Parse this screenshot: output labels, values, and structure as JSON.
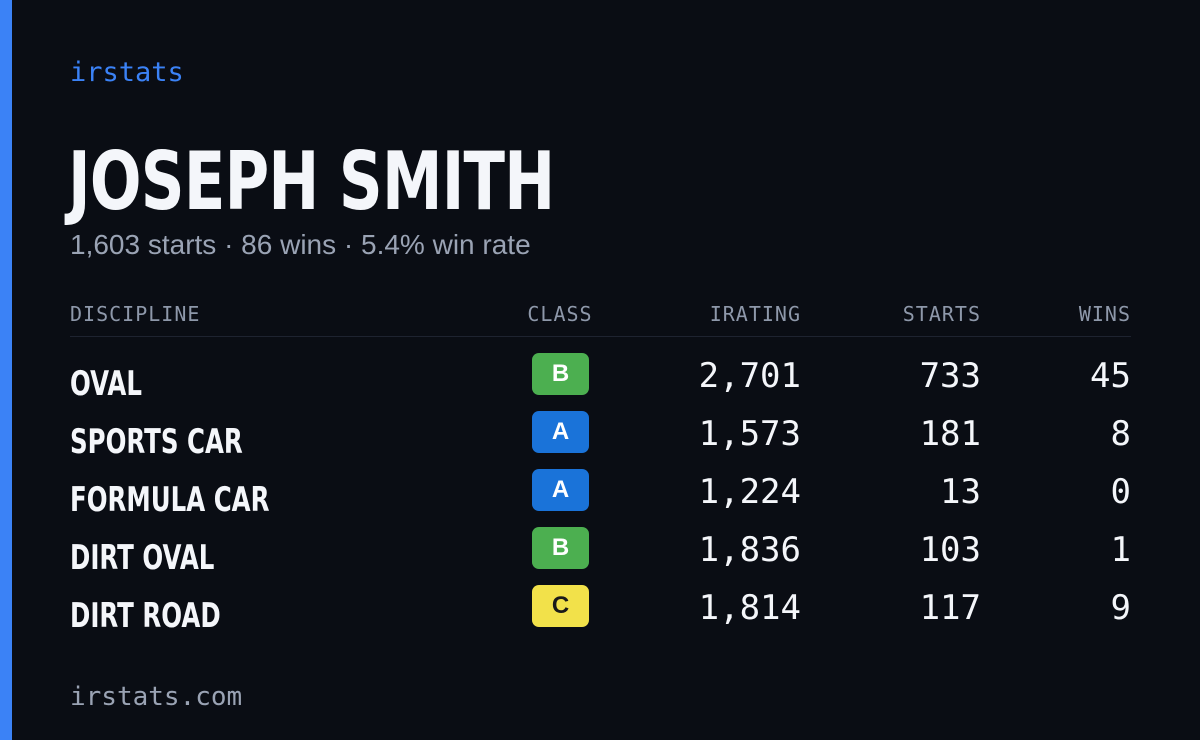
{
  "theme": {
    "accent": "#3b82f6",
    "class_colors": {
      "A": {
        "bg": "#1a73d9",
        "fg": "#ffffff"
      },
      "B": {
        "bg": "#4caf50",
        "fg": "#ffffff"
      },
      "C": {
        "bg": "#f2e14a",
        "fg": "#1a1a1a"
      }
    }
  },
  "brand": "irstats",
  "driver": {
    "name": "JOSEPH SMITH",
    "summary": "1,603 starts · 86 wins · 5.4% win rate"
  },
  "table": {
    "headers": {
      "discipline": "DISCIPLINE",
      "class": "CLASS",
      "irating": "IRATING",
      "starts": "STARTS",
      "wins": "WINS"
    },
    "rows": [
      {
        "discipline": "OVAL",
        "class": "B",
        "irating": "2,701",
        "starts": "733",
        "wins": "45"
      },
      {
        "discipline": "SPORTS CAR",
        "class": "A",
        "irating": "1,573",
        "starts": "181",
        "wins": "8"
      },
      {
        "discipline": "FORMULA CAR",
        "class": "A",
        "irating": "1,224",
        "starts": "13",
        "wins": "0"
      },
      {
        "discipline": "DIRT OVAL",
        "class": "B",
        "irating": "1,836",
        "starts": "103",
        "wins": "1"
      },
      {
        "discipline": "DIRT ROAD",
        "class": "C",
        "irating": "1,814",
        "starts": "117",
        "wins": "9"
      }
    ]
  },
  "footer": "irstats.com"
}
